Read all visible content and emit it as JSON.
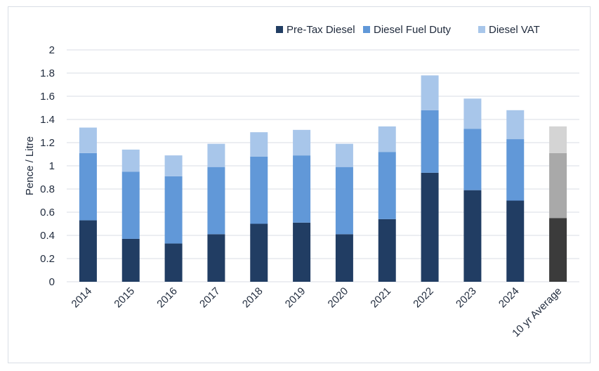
{
  "chart_data": {
    "type": "bar",
    "stacked": true,
    "title": "",
    "xlabel": "",
    "ylabel": "Pence / Litre",
    "ylim": [
      0,
      2
    ],
    "yticks": [
      "0",
      "0.2",
      "0.4",
      "0.6",
      "0.8",
      "1",
      "1.2",
      "1.4",
      "1.6",
      "1.8",
      "2"
    ],
    "grid": true,
    "legend_position": "top-right",
    "categories": [
      "2014",
      "2015",
      "2016",
      "2017",
      "2018",
      "2019",
      "2020",
      "2021",
      "2022",
      "2023",
      "2024",
      "10 yr Average"
    ],
    "series": [
      {
        "name": "Pre-Tax Diesel",
        "color": "#213d63",
        "values": [
          0.53,
          0.37,
          0.33,
          0.41,
          0.5,
          0.51,
          0.41,
          0.54,
          0.94,
          0.79,
          0.7,
          0.55
        ]
      },
      {
        "name": "Diesel Fuel Duty",
        "color": "#6198d8",
        "values": [
          0.58,
          0.58,
          0.58,
          0.58,
          0.58,
          0.58,
          0.58,
          0.58,
          0.54,
          0.53,
          0.53,
          0.56
        ]
      },
      {
        "name": "Diesel VAT",
        "color": "#a8c6ea",
        "values": [
          0.22,
          0.19,
          0.18,
          0.2,
          0.21,
          0.22,
          0.2,
          0.22,
          0.3,
          0.26,
          0.25,
          0.23
        ]
      }
    ],
    "highlight_category": "10 yr Average",
    "highlight_colors": [
      "#3b3b3b",
      "#a9a9a9",
      "#d4d4d4"
    ]
  }
}
